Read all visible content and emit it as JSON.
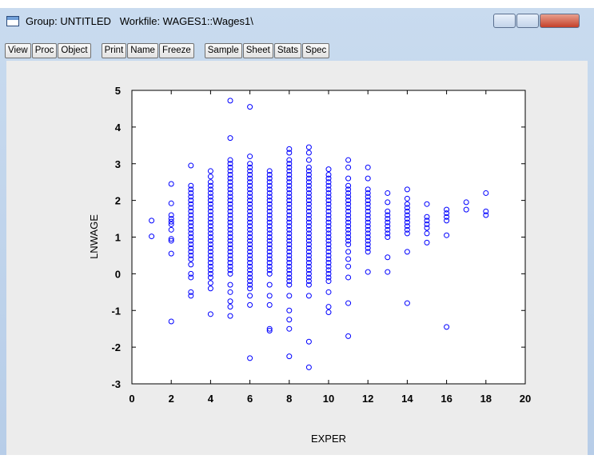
{
  "window": {
    "title": "Group: UNTITLED   Workfile: WAGES1::Wages1\\"
  },
  "toolbar": [
    "View",
    "Proc",
    "Object",
    "Print",
    "Name",
    "Freeze",
    "Sample",
    "Sheet",
    "Stats",
    "Spec"
  ],
  "chart_data": {
    "type": "scatter",
    "x_label": "EXPER",
    "y_label": "LNWAGE",
    "color": "#0000ff",
    "xlim": [
      0,
      20
    ],
    "ylim": [
      -3,
      5
    ],
    "xticks": [
      0,
      2,
      4,
      6,
      8,
      10,
      12,
      14,
      16,
      18,
      20
    ],
    "yticks": [
      -3,
      -2,
      -1,
      0,
      1,
      2,
      3,
      4,
      5
    ],
    "x": [
      1,
      1,
      2,
      2,
      2,
      2,
      2,
      2,
      2,
      2,
      2,
      2,
      2,
      3,
      3,
      3,
      3,
      3,
      3,
      3,
      3,
      3,
      3,
      3,
      3,
      3,
      3,
      3,
      3,
      3,
      3,
      3,
      3,
      3,
      3,
      3,
      3,
      3,
      3,
      3,
      4,
      4,
      4,
      4,
      4,
      4,
      4,
      4,
      4,
      4,
      4,
      4,
      4,
      4,
      4,
      4,
      4,
      4,
      4,
      4,
      4,
      4,
      4,
      4,
      4,
      4,
      4,
      4,
      4,
      4,
      4,
      4,
      5,
      5,
      5,
      5,
      5,
      5,
      5,
      5,
      5,
      5,
      5,
      5,
      5,
      5,
      5,
      5,
      5,
      5,
      5,
      5,
      5,
      5,
      5,
      5,
      5,
      5,
      5,
      5,
      5,
      5,
      5,
      5,
      5,
      5,
      5,
      5,
      5,
      5,
      5,
      6,
      6,
      6,
      6,
      6,
      6,
      6,
      6,
      6,
      6,
      6,
      6,
      6,
      6,
      6,
      6,
      6,
      6,
      6,
      6,
      6,
      6,
      6,
      6,
      6,
      6,
      6,
      6,
      6,
      6,
      6,
      6,
      6,
      6,
      6,
      6,
      6,
      6,
      6,
      6,
      7,
      7,
      7,
      7,
      7,
      7,
      7,
      7,
      7,
      7,
      7,
      7,
      7,
      7,
      7,
      7,
      7,
      7,
      7,
      7,
      7,
      7,
      7,
      7,
      7,
      7,
      7,
      7,
      7,
      7,
      7,
      7,
      7,
      7,
      8,
      8,
      8,
      8,
      8,
      8,
      8,
      8,
      8,
      8,
      8,
      8,
      8,
      8,
      8,
      8,
      8,
      8,
      8,
      8,
      8,
      8,
      8,
      8,
      8,
      8,
      8,
      8,
      8,
      8,
      8,
      8,
      8,
      8,
      8,
      8,
      8,
      8,
      8,
      8,
      8,
      8,
      9,
      9,
      9,
      9,
      9,
      9,
      9,
      9,
      9,
      9,
      9,
      9,
      9,
      9,
      9,
      9,
      9,
      9,
      9,
      9,
      9,
      9,
      9,
      9,
      9,
      9,
      9,
      9,
      9,
      9,
      9,
      9,
      9,
      9,
      9,
      9,
      9,
      9,
      9,
      10,
      10,
      10,
      10,
      10,
      10,
      10,
      10,
      10,
      10,
      10,
      10,
      10,
      10,
      10,
      10,
      10,
      10,
      10,
      10,
      10,
      10,
      10,
      10,
      10,
      10,
      10,
      10,
      10,
      10,
      10,
      10,
      10,
      10,
      11,
      11,
      11,
      11,
      11,
      11,
      11,
      11,
      11,
      11,
      11,
      11,
      11,
      11,
      11,
      11,
      11,
      11,
      11,
      11,
      11,
      11,
      11,
      11,
      11,
      11,
      12,
      12,
      12,
      12,
      12,
      12,
      12,
      12,
      12,
      12,
      12,
      12,
      12,
      12,
      12,
      12,
      12,
      12,
      12,
      12,
      12,
      13,
      13,
      13,
      13,
      13,
      13,
      13,
      13,
      13,
      13,
      13,
      13,
      14,
      14,
      14,
      14,
      14,
      14,
      14,
      14,
      14,
      14,
      14,
      14,
      14,
      15,
      15,
      15,
      15,
      15,
      15,
      15,
      16,
      16,
      16,
      16,
      16,
      16,
      17,
      17,
      18,
      18,
      18
    ],
    "values": [
      1.45,
      1.02,
      2.45,
      1.92,
      1.6,
      1.5,
      1.42,
      1.35,
      1.2,
      0.95,
      0.9,
      0.55,
      -1.3,
      2.95,
      2.4,
      2.3,
      2.2,
      2.1,
      2.0,
      1.9,
      1.8,
      1.7,
      1.6,
      1.5,
      1.4,
      1.3,
      1.2,
      1.1,
      1.0,
      0.9,
      0.8,
      0.7,
      0.6,
      0.5,
      0.4,
      0.25,
      0.0,
      -0.1,
      -0.5,
      -0.6,
      2.8,
      2.65,
      2.5,
      2.4,
      2.3,
      2.2,
      2.1,
      2.0,
      1.9,
      1.8,
      1.7,
      1.6,
      1.5,
      1.4,
      1.3,
      1.2,
      1.1,
      1.0,
      0.9,
      0.8,
      0.7,
      0.6,
      0.5,
      0.4,
      0.3,
      0.2,
      0.1,
      0.0,
      -0.1,
      -0.25,
      -0.4,
      -1.1,
      4.72,
      3.7,
      3.1,
      3.0,
      2.9,
      2.8,
      2.7,
      2.6,
      2.5,
      2.4,
      2.3,
      2.2,
      2.1,
      2.0,
      1.9,
      1.8,
      1.7,
      1.6,
      1.5,
      1.4,
      1.3,
      1.2,
      1.1,
      1.0,
      0.9,
      0.8,
      0.7,
      0.6,
      0.5,
      0.4,
      0.3,
      0.2,
      0.1,
      0.0,
      -0.3,
      -0.5,
      -0.75,
      -0.9,
      -1.15,
      4.55,
      3.2,
      3.0,
      2.9,
      2.8,
      2.7,
      2.6,
      2.5,
      2.4,
      2.3,
      2.2,
      2.1,
      2.0,
      1.9,
      1.8,
      1.7,
      1.6,
      1.5,
      1.4,
      1.3,
      1.2,
      1.1,
      1.0,
      0.9,
      0.8,
      0.7,
      0.6,
      0.5,
      0.4,
      0.3,
      0.2,
      0.1,
      0.0,
      -0.1,
      -0.2,
      -0.3,
      -0.4,
      -0.6,
      -0.85,
      -2.3,
      2.8,
      2.7,
      2.6,
      2.5,
      2.4,
      2.3,
      2.2,
      2.1,
      2.0,
      1.9,
      1.8,
      1.7,
      1.6,
      1.5,
      1.4,
      1.3,
      1.2,
      1.1,
      1.0,
      0.9,
      0.8,
      0.7,
      0.6,
      0.5,
      0.4,
      0.3,
      0.2,
      0.1,
      0.0,
      -0.3,
      -0.6,
      -0.85,
      -1.5,
      -1.55,
      3.4,
      3.3,
      3.1,
      3.0,
      2.9,
      2.8,
      2.7,
      2.6,
      2.5,
      2.4,
      2.3,
      2.2,
      2.1,
      2.0,
      1.9,
      1.8,
      1.7,
      1.6,
      1.5,
      1.4,
      1.3,
      1.2,
      1.1,
      1.0,
      0.9,
      0.8,
      0.7,
      0.6,
      0.5,
      0.4,
      0.3,
      0.2,
      0.1,
      0.0,
      -0.1,
      -0.2,
      -0.3,
      -0.6,
      -1.0,
      -1.25,
      -1.5,
      -2.25,
      3.45,
      3.3,
      3.1,
      2.9,
      2.8,
      2.7,
      2.6,
      2.5,
      2.4,
      2.3,
      2.2,
      2.1,
      2.0,
      1.9,
      1.8,
      1.7,
      1.6,
      1.5,
      1.4,
      1.3,
      1.2,
      1.1,
      1.0,
      0.9,
      0.8,
      0.7,
      0.6,
      0.5,
      0.4,
      0.3,
      0.2,
      0.1,
      0.0,
      -0.1,
      -0.2,
      -0.3,
      -0.6,
      -1.85,
      -2.55,
      2.85,
      2.7,
      2.6,
      2.5,
      2.4,
      2.3,
      2.2,
      2.1,
      2.0,
      1.9,
      1.8,
      1.7,
      1.6,
      1.5,
      1.4,
      1.3,
      1.2,
      1.1,
      1.0,
      0.9,
      0.8,
      0.7,
      0.6,
      0.5,
      0.4,
      0.3,
      0.2,
      0.1,
      0.0,
      -0.1,
      -0.2,
      -0.5,
      -0.9,
      -1.05,
      3.1,
      2.9,
      2.6,
      2.4,
      2.3,
      2.2,
      2.1,
      2.0,
      1.9,
      1.8,
      1.7,
      1.6,
      1.5,
      1.4,
      1.3,
      1.2,
      1.1,
      1.0,
      0.9,
      0.8,
      0.6,
      0.4,
      0.2,
      -0.1,
      -0.8,
      -1.7,
      2.9,
      2.6,
      2.3,
      2.2,
      2.1,
      2.0,
      1.9,
      1.8,
      1.7,
      1.6,
      1.5,
      1.4,
      1.3,
      1.2,
      1.1,
      1.0,
      0.9,
      0.8,
      0.7,
      0.6,
      0.05,
      2.2,
      1.95,
      1.7,
      1.6,
      1.5,
      1.4,
      1.3,
      1.2,
      1.1,
      1.0,
      0.45,
      0.05,
      2.3,
      2.05,
      1.9,
      1.8,
      1.7,
      1.6,
      1.5,
      1.4,
      1.3,
      1.2,
      1.1,
      0.6,
      -0.8,
      1.9,
      1.55,
      1.45,
      1.35,
      1.25,
      1.1,
      0.85,
      1.75,
      1.65,
      1.55,
      1.45,
      1.05,
      -1.45,
      1.95,
      1.75,
      2.2,
      1.7,
      1.6
    ]
  }
}
